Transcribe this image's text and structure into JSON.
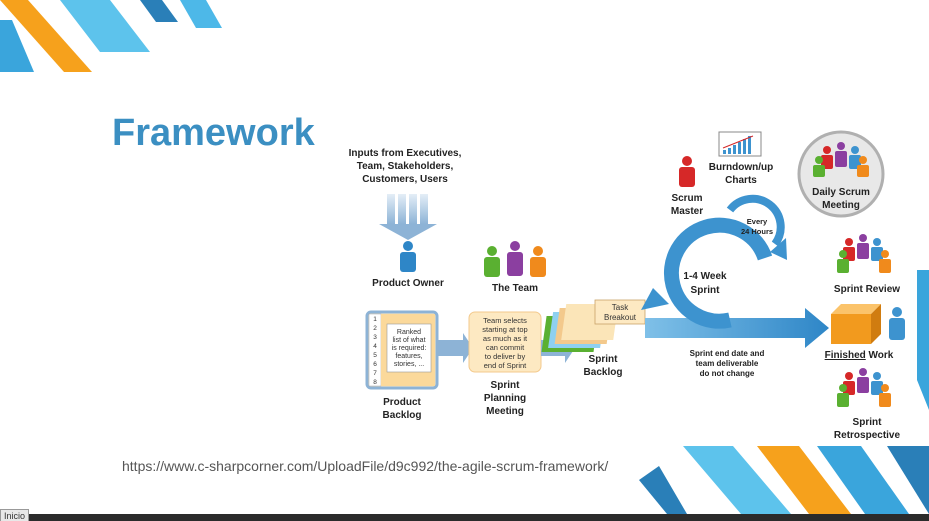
{
  "slide": {
    "title": "Framework",
    "source_url": "https://www.c-sharpcorner.com/UploadFile/d9c992/the-agile-scrum-framework/",
    "status_label": "Inicio"
  },
  "diagram": {
    "inputs": [
      "Inputs from Executives,",
      "Team, Stakeholders,",
      "Customers, Users"
    ],
    "product_owner": "Product Owner",
    "the_team": "The Team",
    "scrum_master": [
      "Scrum",
      "Master"
    ],
    "burndown": [
      "Burndown/up",
      "Charts"
    ],
    "daily_scrum": [
      "Daily Scrum",
      "Meeting"
    ],
    "every_24": [
      "Every",
      "24 Hours"
    ],
    "sprint_loop": [
      "1-4 Week",
      "Sprint"
    ],
    "sprint_review": "Sprint Review",
    "backlog_numbers": [
      "1",
      "2",
      "3",
      "4",
      "5",
      "6",
      "7",
      "8"
    ],
    "ranked_list": [
      "Ranked",
      "list of what",
      "is required:",
      "features,",
      "stories, ..."
    ],
    "product_backlog": [
      "Product",
      "Backlog"
    ],
    "planning_note": [
      "Team selects",
      "starting at top",
      "as much as it",
      "can commit",
      "to deliver by",
      "end of Sprint"
    ],
    "sprint_planning": [
      "Sprint",
      "Planning",
      "Meeting"
    ],
    "task_breakout": [
      "Task",
      "Breakout"
    ],
    "sprint_backlog": [
      "Sprint",
      "Backlog"
    ],
    "sprint_end": [
      "Sprint end date and",
      "team deliverable",
      "do not change"
    ],
    "finished_work_a": "Finished",
    "finished_work_b": " Work",
    "sprint_retro": [
      "Sprint",
      "Retrospective"
    ]
  }
}
